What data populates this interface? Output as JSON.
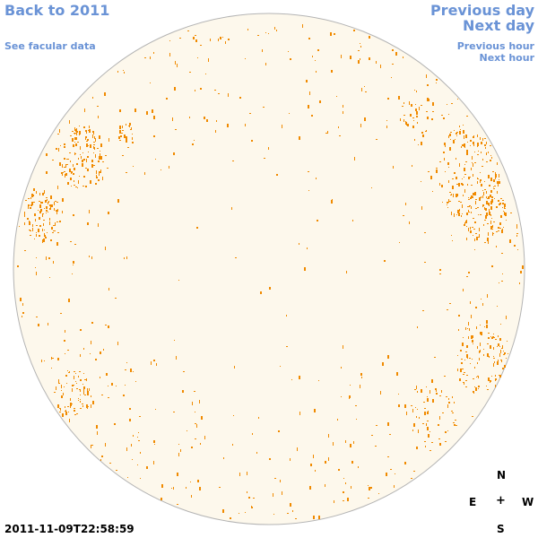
{
  "nav": {
    "back": "Back to 2011",
    "previous_day": "Previous day",
    "next_day": "Next day",
    "facular_data": "See facular data",
    "previous_hour": "Previous hour",
    "next_hour": "Next hour"
  },
  "compass": {
    "north": "N",
    "south": "S",
    "east": "E",
    "west": "W",
    "center": "+"
  },
  "timestamp": "2011-11-09T22:58:59",
  "colors": {
    "link": "#6a93d6",
    "disk_fill": "#fdf8ec",
    "disk_border": "#b4b4b4",
    "spot": "#f08a00"
  }
}
